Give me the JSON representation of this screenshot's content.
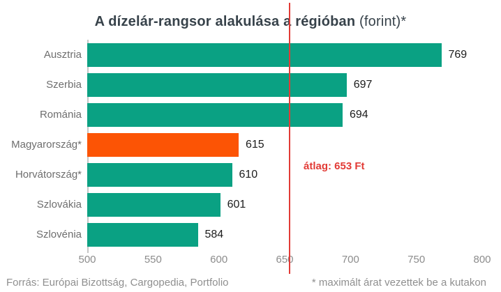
{
  "title": {
    "main": "A dízelár-rangsor alakulása a régióban",
    "suffix": " (forint)*"
  },
  "chart_data": {
    "type": "bar",
    "orientation": "horizontal",
    "title": "A dízelár-rangsor alakulása a régióban (forint)*",
    "categories": [
      "Ausztria",
      "Szerbia",
      "Románia",
      "Magyarország*",
      "Horvátország*",
      "Szlovákia",
      "Szlovénia"
    ],
    "values": [
      769,
      697,
      694,
      615,
      610,
      601,
      584
    ],
    "xlabel": "",
    "ylabel": "",
    "xlim": [
      500,
      800
    ],
    "xticks": [
      500,
      550,
      600,
      650,
      700,
      750,
      800
    ],
    "grid": false,
    "bar_color": "#0aa183",
    "highlight_category": "Magyarország*",
    "highlight_color": "#fc5405",
    "average_line": {
      "value": 653,
      "label": "átlag: 653 Ft",
      "color": "#e23b36"
    }
  },
  "colors": {
    "title_text": "#37424a",
    "category_label": "#6e6e6e",
    "value_label": "#1c1c1c",
    "tick_label": "#8c8c8c",
    "axis_line": "#c6c6c6",
    "footer_text": "#8f8f8f"
  },
  "footer": {
    "source": "Forrás: Európai Bizottság, Cargopedia, Portfolio",
    "note": "* maximált árat vezettek be a kutakon"
  }
}
